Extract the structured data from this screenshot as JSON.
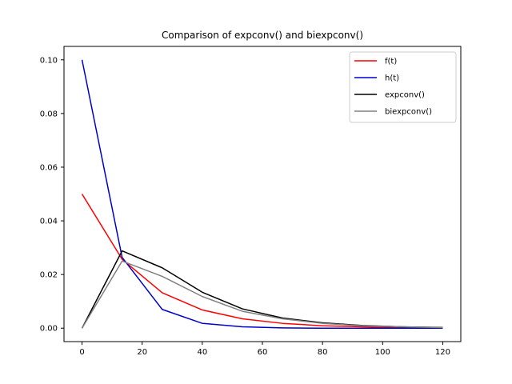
{
  "chart_data": {
    "type": "line",
    "title": "Comparison of expconv() and biexpconv()",
    "xlabel": "",
    "ylabel": "",
    "xlim": [
      -6,
      126
    ],
    "ylim": [
      -0.005,
      0.105
    ],
    "xticks": [
      0,
      20,
      40,
      60,
      80,
      100,
      120
    ],
    "yticks": [
      0.0,
      0.02,
      0.04,
      0.06,
      0.08,
      0.1
    ],
    "xtick_labels": [
      "0",
      "20",
      "40",
      "60",
      "80",
      "100",
      "120"
    ],
    "ytick_labels": [
      "0.00",
      "0.02",
      "0.04",
      "0.06",
      "0.08",
      "0.10"
    ],
    "grid": false,
    "legend_position": "top-right",
    "x": [
      0,
      13.33,
      26.67,
      40,
      53.33,
      66.67,
      80,
      93.33,
      106.67,
      120
    ],
    "series": [
      {
        "name": "f(t)",
        "color": "#ff0000",
        "values": [
          0.05,
          0.0257,
          0.0132,
          0.0068,
          0.0035,
          0.0018,
          0.0009,
          0.0005,
          0.0002,
          0.0001
        ]
      },
      {
        "name": "h(t)",
        "color": "#0000cc",
        "values": [
          0.1,
          0.0264,
          0.007,
          0.0018,
          0.0005,
          0.0001,
          0.0,
          0.0,
          0.0,
          0.0
        ]
      },
      {
        "name": "expconv()",
        "color": "#000000",
        "values": [
          0.0,
          0.0288,
          0.0225,
          0.0134,
          0.0072,
          0.0038,
          0.002,
          0.001,
          0.0005,
          0.0003
        ]
      },
      {
        "name": "biexpconv()",
        "color": "#808080",
        "values": [
          0.0,
          0.025,
          0.0193,
          0.0118,
          0.0063,
          0.0035,
          0.0018,
          0.0009,
          0.0005,
          0.0002
        ]
      }
    ]
  }
}
